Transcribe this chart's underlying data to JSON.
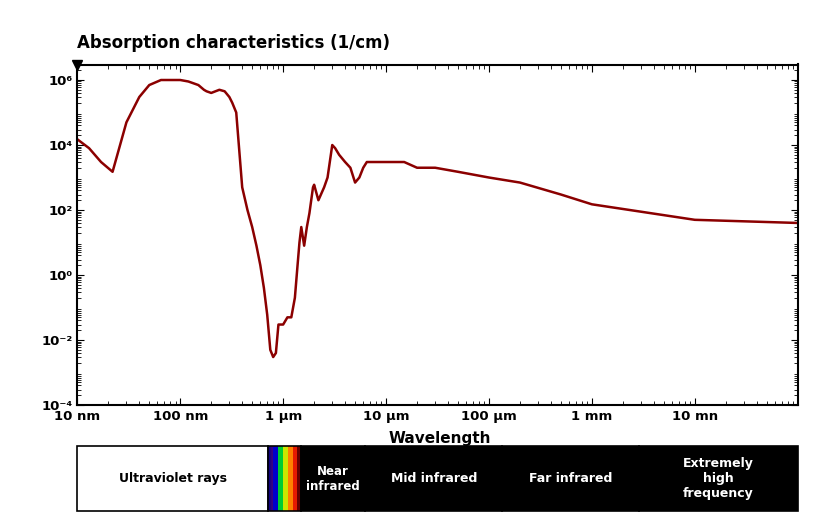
{
  "title": "Absorption characteristics (1/cm)",
  "xlabel": "Wavelength",
  "line_color": "#8B0000",
  "line_width": 1.8,
  "background_color": "#ffffff",
  "xlim": [
    1e-08,
    0.1
  ],
  "ylim": [
    0.0001,
    3000000.0
  ],
  "xtick_positions": [
    1e-08,
    1e-07,
    1e-06,
    1e-05,
    0.0001,
    0.001,
    0.01
  ],
  "xtick_labels": [
    "10 nm",
    "100 nm",
    "1 μm",
    "10 μm",
    "100 μm",
    "1 mm",
    "10 mn"
  ],
  "ytick_positions": [
    0.0001,
    0.01,
    1.0,
    100.0,
    10000.0,
    1000000.0
  ],
  "ytick_labels": [
    "10⁻⁴",
    "10⁻²",
    "10⁰",
    "10²",
    "10⁴",
    "10⁶"
  ],
  "wavelengths_nm": [
    10,
    13,
    17,
    22,
    30,
    40,
    50,
    65,
    80,
    100,
    120,
    150,
    170,
    180,
    200,
    220,
    240,
    270,
    300,
    320,
    350,
    400,
    450,
    500,
    550,
    600,
    650,
    700,
    750,
    800,
    850,
    900,
    950,
    1000,
    1100,
    1200,
    1300,
    1380,
    1440,
    1500,
    1600,
    1700,
    1800,
    1950,
    2000,
    2200,
    2500,
    2700,
    3000,
    3200,
    3500,
    4000,
    4500,
    5000,
    5500,
    6000,
    6500,
    7000,
    8000,
    9000,
    10000,
    12000,
    15000,
    20000,
    30000,
    50000,
    100000,
    200000,
    500000,
    1000000,
    10000000,
    100000000
  ],
  "absorption": [
    15000.0,
    8000.0,
    3000.0,
    1500.0,
    50000.0,
    300000.0,
    700000.0,
    1000000.0,
    1000000.0,
    1000000.0,
    900000.0,
    700000.0,
    500000.0,
    450000.0,
    400000.0,
    450000.0,
    500000.0,
    450000.0,
    300000.0,
    200000.0,
    100000.0,
    500.0,
    100.0,
    30.0,
    8.0,
    2.0,
    0.4,
    0.06,
    0.005,
    0.003,
    0.004,
    0.03,
    0.03,
    0.03,
    0.05,
    0.05,
    0.2,
    2.0,
    10.0,
    30.0,
    8.0,
    30.0,
    80.0,
    500.0,
    600.0,
    200.0,
    500.0,
    1000.0,
    10000.0,
    8000.0,
    5000.0,
    3000.0,
    2000.0,
    700.0,
    1000.0,
    2000.0,
    3000.0,
    3000.0,
    3000.0,
    3000.0,
    3000.0,
    3000.0,
    3000.0,
    2000.0,
    2000.0,
    1500.0,
    1000.0,
    700.0,
    300.0,
    150.0,
    50.0,
    40.0
  ]
}
